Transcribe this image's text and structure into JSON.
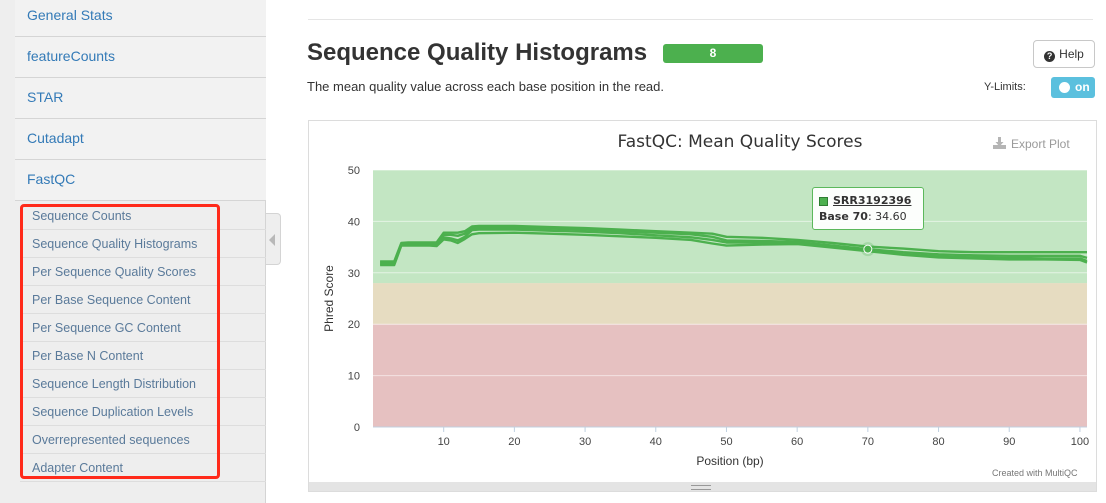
{
  "sidebar": {
    "sections": [
      {
        "label": "General Stats"
      },
      {
        "label": "featureCounts"
      },
      {
        "label": "STAR"
      },
      {
        "label": "Cutadapt"
      },
      {
        "label": "FastQC"
      }
    ],
    "fastqc_items": [
      {
        "label": "Sequence Counts"
      },
      {
        "label": "Sequence Quality Histograms"
      },
      {
        "label": "Per Sequence Quality Scores"
      },
      {
        "label": "Per Base Sequence Content"
      },
      {
        "label": "Per Sequence GC Content"
      },
      {
        "label": "Per Base N Content"
      },
      {
        "label": "Sequence Length Distribution"
      },
      {
        "label": "Sequence Duplication Levels"
      },
      {
        "label": "Overrepresented sequences"
      },
      {
        "label": "Adapter Content"
      }
    ],
    "highlight_color": "#ff2a1a"
  },
  "main": {
    "title": "Sequence Quality Histograms",
    "badge": "8",
    "badge_color": "#4cb04e",
    "description": "The mean quality value across each base position in the read.",
    "help_label": "Help",
    "help_icon": "question-circle-icon",
    "ylimits_label": "Y-Limits:",
    "ylimits_toggle": "on",
    "export_label": "Export Plot",
    "export_icon": "download-icon",
    "credit": "Created with MultiQC"
  },
  "chart_data": {
    "type": "line",
    "title": "FastQC: Mean Quality Scores",
    "xlabel": "Position (bp)",
    "ylabel": "Phred Score",
    "xlim": [
      0,
      101
    ],
    "ylim": [
      0,
      50
    ],
    "x_ticks": [
      10,
      20,
      30,
      40,
      50,
      60,
      70,
      80,
      90,
      100
    ],
    "y_ticks": [
      0,
      10,
      20,
      30,
      40,
      50
    ],
    "zones": [
      {
        "from": 0,
        "to": 20,
        "color": "#e6c1c1"
      },
      {
        "from": 20,
        "to": 28,
        "color": "#e6dcc1"
      },
      {
        "from": 28,
        "to": 50,
        "color": "#c3e6c3"
      }
    ],
    "series_color": "#4cb04e",
    "series": [
      {
        "x": [
          1,
          2,
          3,
          4,
          5,
          6,
          7,
          8,
          9,
          10,
          11,
          12,
          13,
          14,
          15,
          20,
          25,
          30,
          35,
          40,
          45,
          48,
          50,
          55,
          60,
          65,
          70,
          75,
          80,
          85,
          90,
          95,
          100,
          101
        ],
        "values": [
          32.2,
          32.2,
          32.2,
          35.8,
          35.9,
          35.9,
          35.9,
          35.9,
          35.9,
          37.8,
          37.8,
          37.8,
          38.1,
          39.0,
          39.1,
          39.1,
          38.9,
          38.7,
          38.4,
          38.1,
          37.8,
          37.6,
          37.0,
          36.8,
          36.4,
          35.8,
          35.1,
          34.7,
          34.2,
          34.0,
          34.0,
          34.0,
          34.0,
          34.0
        ]
      },
      {
        "x": [
          1,
          2,
          3,
          4,
          5,
          6,
          7,
          8,
          9,
          10,
          11,
          12,
          13,
          14,
          15,
          20,
          25,
          30,
          35,
          40,
          45,
          48,
          50,
          55,
          60,
          65,
          70,
          75,
          80,
          85,
          90,
          95,
          100,
          101
        ],
        "values": [
          32.0,
          32.0,
          32.0,
          35.6,
          35.7,
          35.7,
          35.7,
          35.7,
          35.6,
          37.4,
          37.4,
          37.2,
          37.6,
          38.7,
          38.8,
          38.8,
          38.6,
          38.4,
          38.1,
          37.8,
          37.5,
          37.0,
          36.3,
          36.2,
          36.0,
          35.3,
          34.6,
          34.0,
          33.6,
          33.4,
          33.3,
          33.3,
          33.3,
          32.9
        ]
      },
      {
        "x": [
          1,
          2,
          3,
          4,
          5,
          6,
          7,
          8,
          9,
          10,
          11,
          12,
          13,
          14,
          15,
          20,
          25,
          30,
          35,
          40,
          45,
          48,
          50,
          55,
          60,
          65,
          70,
          75,
          80,
          85,
          90,
          95,
          100,
          101
        ],
        "values": [
          31.7,
          31.7,
          31.7,
          35.5,
          35.5,
          35.5,
          35.5,
          35.5,
          35.4,
          36.9,
          36.7,
          36.3,
          37.0,
          38.3,
          38.4,
          38.4,
          38.2,
          38.0,
          37.7,
          37.3,
          36.9,
          36.4,
          35.9,
          35.9,
          35.8,
          35.1,
          34.4,
          33.6,
          33.2,
          33.0,
          32.9,
          32.8,
          32.8,
          32.3
        ]
      },
      {
        "x": [
          1,
          2,
          3,
          4,
          5,
          6,
          7,
          8,
          9,
          10,
          11,
          12,
          13,
          14,
          15,
          20,
          25,
          30,
          35,
          40,
          45,
          48,
          50,
          55,
          60,
          65,
          70,
          75,
          80,
          85,
          90,
          95,
          100,
          101
        ],
        "values": [
          31.5,
          31.5,
          31.5,
          35.3,
          35.3,
          35.3,
          35.3,
          35.3,
          35.2,
          36.5,
          36.3,
          35.8,
          36.6,
          37.5,
          37.7,
          37.8,
          37.6,
          37.4,
          37.1,
          36.8,
          36.4,
          35.7,
          35.3,
          35.5,
          35.6,
          34.9,
          34.2,
          33.5,
          33.0,
          32.8,
          32.6,
          32.6,
          32.5,
          32.0
        ]
      }
    ],
    "tooltip": {
      "sample": "SRR3192396",
      "base_label": "Base 70",
      "value": "34.60",
      "x": 70,
      "y": 34.6
    }
  }
}
